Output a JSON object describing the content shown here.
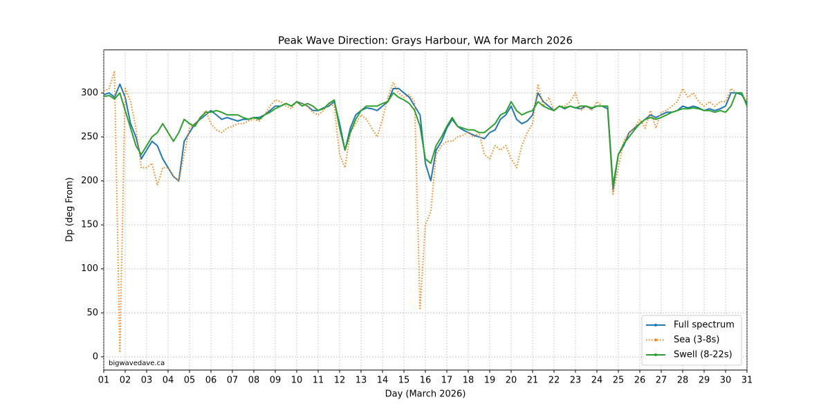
{
  "chart_data": {
    "type": "line",
    "title": "Peak Wave Direction: Grays Harbour, WA for March 2026",
    "xlabel": "Day (March 2026)",
    "ylabel": "Dp (deg From)",
    "annotation": "bigwavedave.ca",
    "grid": true,
    "legend": "lower right",
    "xlim": [
      1,
      31
    ],
    "ylim": [
      -15,
      349
    ],
    "xticks": [
      {
        "value": 1,
        "label": "01"
      },
      {
        "value": 2,
        "label": "02"
      },
      {
        "value": 3,
        "label": "03"
      },
      {
        "value": 4,
        "label": "04"
      },
      {
        "value": 5,
        "label": "05"
      },
      {
        "value": 6,
        "label": "06"
      },
      {
        "value": 7,
        "label": "07"
      },
      {
        "value": 8,
        "label": "08"
      },
      {
        "value": 9,
        "label": "09"
      },
      10,
      11,
      12,
      13,
      14,
      15,
      16,
      17,
      18,
      19,
      20,
      21,
      22,
      23,
      24,
      25,
      26,
      27,
      28,
      29,
      30,
      31
    ],
    "yticks": [
      0,
      50,
      100,
      150,
      200,
      250,
      300
    ],
    "x": [
      1,
      1.25,
      1.5,
      1.75,
      2,
      2.25,
      2.5,
      2.75,
      3,
      3.25,
      3.5,
      3.75,
      4,
      4.25,
      4.5,
      4.75,
      5,
      5.25,
      5.5,
      5.75,
      6,
      6.25,
      6.5,
      6.75,
      7,
      7.25,
      7.5,
      7.75,
      8,
      8.25,
      8.5,
      8.75,
      9,
      9.25,
      9.5,
      9.75,
      10,
      10.25,
      10.5,
      10.75,
      11,
      11.25,
      11.5,
      11.75,
      12,
      12.25,
      12.5,
      12.75,
      13,
      13.25,
      13.5,
      13.75,
      14,
      14.25,
      14.5,
      14.75,
      15,
      15.25,
      15.5,
      15.75,
      16,
      16.25,
      16.5,
      16.75,
      17,
      17.25,
      17.5,
      17.75,
      18,
      18.25,
      18.5,
      18.75,
      19,
      19.25,
      19.5,
      19.75,
      20,
      20.25,
      20.5,
      20.75,
      21,
      21.25,
      21.5,
      21.75,
      22,
      22.25,
      22.5,
      22.75,
      23,
      23.25,
      23.5,
      23.75,
      24,
      24.25,
      24.5,
      24.75,
      25,
      25.25,
      25.5,
      25.75,
      26,
      26.25,
      26.5,
      26.75,
      27,
      27.25,
      27.5,
      27.75,
      28,
      28.25,
      28.5,
      28.75,
      29,
      29.25,
      29.5,
      29.75,
      30,
      30.25,
      30.5,
      30.75,
      31
    ],
    "series": [
      {
        "name": "Full spectrum",
        "color": "#1f77b4",
        "linestyle": "solid",
        "values": [
          298,
          300,
          295,
          310,
          295,
          265,
          250,
          225,
          235,
          245,
          240,
          225,
          215,
          205,
          200,
          245,
          255,
          265,
          270,
          275,
          280,
          275,
          270,
          272,
          270,
          268,
          270,
          270,
          272,
          272,
          275,
          280,
          285,
          285,
          288,
          285,
          290,
          288,
          285,
          280,
          280,
          283,
          285,
          290,
          265,
          235,
          260,
          275,
          280,
          283,
          282,
          280,
          285,
          290,
          305,
          305,
          300,
          295,
          285,
          275,
          220,
          200,
          235,
          245,
          260,
          270,
          262,
          258,
          255,
          252,
          250,
          248,
          255,
          258,
          270,
          275,
          285,
          270,
          265,
          268,
          275,
          300,
          290,
          285,
          280,
          285,
          282,
          285,
          283,
          282,
          285,
          282,
          285,
          285,
          282,
          190,
          230,
          240,
          255,
          260,
          265,
          270,
          275,
          272,
          275,
          278,
          278,
          280,
          285,
          283,
          285,
          283,
          280,
          282,
          280,
          282,
          285,
          300,
          300,
          298,
          288
        ]
      },
      {
        "name": "Sea (3-8s)",
        "color": "#ff7f0e",
        "linestyle": "dotted",
        "values": [
          302,
          305,
          325,
          5,
          305,
          290,
          260,
          215,
          215,
          220,
          195,
          215,
          215,
          205,
          200,
          230,
          260,
          265,
          270,
          280,
          265,
          258,
          255,
          260,
          262,
          265,
          265,
          268,
          270,
          268,
          275,
          285,
          292,
          290,
          285,
          282,
          290,
          288,
          285,
          278,
          275,
          280,
          288,
          285,
          230,
          215,
          255,
          265,
          275,
          270,
          260,
          250,
          270,
          295,
          312,
          300,
          295,
          298,
          290,
          55,
          150,
          165,
          230,
          240,
          245,
          245,
          250,
          252,
          255,
          250,
          255,
          230,
          225,
          240,
          235,
          240,
          225,
          215,
          240,
          255,
          265,
          310,
          285,
          295,
          280,
          285,
          285,
          290,
          300,
          280,
          285,
          280,
          290,
          285,
          285,
          185,
          215,
          245,
          255,
          260,
          270,
          260,
          280,
          260,
          278,
          280,
          285,
          290,
          305,
          295,
          300,
          290,
          285,
          290,
          285,
          290,
          290,
          305,
          300,
          300,
          290
        ]
      },
      {
        "name": "Swell (8-22s)",
        "color": "#2ca02c",
        "linestyle": "solid",
        "values": [
          296,
          297,
          293,
          300,
          280,
          260,
          240,
          230,
          240,
          250,
          255,
          265,
          255,
          245,
          255,
          270,
          265,
          262,
          272,
          278,
          278,
          280,
          278,
          275,
          275,
          275,
          272,
          270,
          272,
          270,
          275,
          278,
          282,
          285,
          288,
          285,
          290,
          285,
          288,
          285,
          280,
          282,
          288,
          292,
          260,
          235,
          255,
          270,
          280,
          285,
          285,
          285,
          288,
          290,
          300,
          295,
          292,
          288,
          280,
          262,
          225,
          220,
          240,
          250,
          262,
          272,
          262,
          260,
          258,
          258,
          255,
          255,
          260,
          265,
          275,
          278,
          290,
          280,
          275,
          278,
          280,
          290,
          285,
          282,
          280,
          285,
          283,
          285,
          283,
          285,
          285,
          283,
          285,
          285,
          285,
          195,
          230,
          242,
          250,
          258,
          265,
          270,
          272,
          270,
          272,
          275,
          278,
          280,
          282,
          282,
          283,
          282,
          280,
          280,
          278,
          280,
          278,
          285,
          300,
          300,
          285
        ]
      }
    ]
  }
}
